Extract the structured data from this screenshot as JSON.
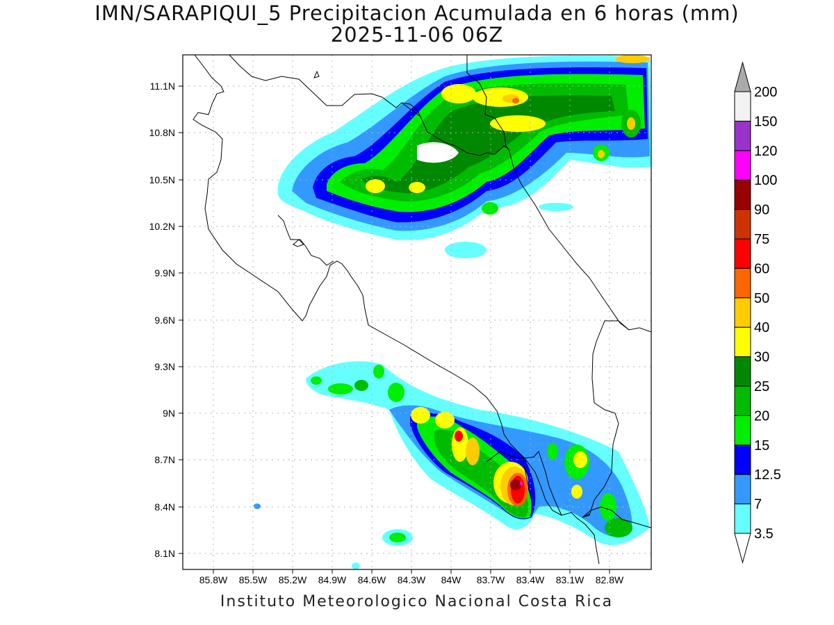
{
  "title": {
    "line1": "IMN/SARAPIQUI_5 Precipitacion Acumulada en 6 horas (mm)",
    "line2": "2025-11-06 06Z"
  },
  "footer": "Instituto Meteorologico Nacional Costa Rica",
  "map": {
    "lon_range": [
      -86.05,
      -82.5
    ],
    "lat_range": [
      8.0,
      11.3
    ],
    "lat_ticks": [
      "11.1N",
      "10.8N",
      "10.5N",
      "10.2N",
      "9.9N",
      "9.6N",
      "9.3N",
      "9N",
      "8.7N",
      "8.4N",
      "8.1N"
    ],
    "lon_ticks": [
      "85.8W",
      "85.5W",
      "85.2W",
      "84.9W",
      "84.6W",
      "84.3W",
      "84W",
      "83.7W",
      "83.4W",
      "83.1W",
      "82.8W"
    ],
    "grid": "dotted"
  },
  "colorbar": {
    "labels": [
      "3.5",
      "7",
      "12.5",
      "15",
      "20",
      "25",
      "30",
      "40",
      "50",
      "60",
      "75",
      "90",
      "100",
      "120",
      "150",
      "200"
    ],
    "colors": [
      "#ffffff",
      "#66ffff",
      "#3399ff",
      "#0000ff",
      "#00ee00",
      "#00bb00",
      "#008800",
      "#ffff00",
      "#ffcc00",
      "#ff6600",
      "#ff0000",
      "#cc3300",
      "#990000",
      "#ff00ff",
      "#9933cc",
      "#f2f2f2",
      "#aaaaaa"
    ]
  }
}
